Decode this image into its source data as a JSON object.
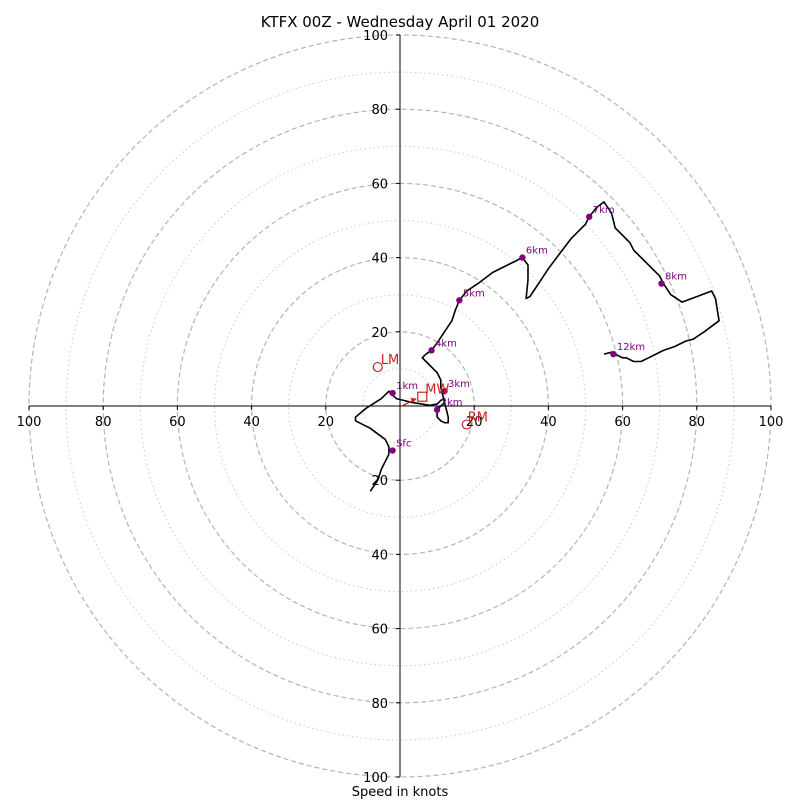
{
  "title": "KTFX 00Z - Wednesday April 01 2020",
  "footer_label": "Speed in knots",
  "chart_data": {
    "type": "line",
    "subtype": "hodograph",
    "units": "knots",
    "axis_range": [
      -100,
      100
    ],
    "ring_major": [
      20,
      40,
      60,
      80,
      100
    ],
    "ring_minor": [
      10,
      30,
      50,
      70,
      90
    ],
    "tick_labels_x": [
      "100",
      "80",
      "60",
      "40",
      "20",
      "20",
      "40",
      "60",
      "80",
      "100"
    ],
    "tick_values_x": [
      -100,
      -80,
      -60,
      -40,
      -20,
      20,
      40,
      60,
      80,
      100
    ],
    "tick_labels_y": [
      "100",
      "80",
      "60",
      "40",
      "20",
      "20",
      "40",
      "60",
      "80",
      "100"
    ],
    "tick_values_y": [
      100,
      80,
      60,
      40,
      20,
      -20,
      -40,
      -60,
      -80,
      -100
    ],
    "trace_color": "#000000",
    "height_marker_color": "#800080",
    "storm_motion_color": "#cc2222",
    "trace": [
      [
        -8,
        -23
      ],
      [
        -6,
        -20
      ],
      [
        -5,
        -17
      ],
      [
        -3,
        -13
      ],
      [
        -3,
        -11
      ],
      [
        -4,
        -9
      ],
      [
        -8,
        -6
      ],
      [
        -12,
        -4
      ],
      [
        -12,
        -3
      ],
      [
        -9,
        -0.5
      ],
      [
        -5,
        2
      ],
      [
        -3,
        4
      ],
      [
        -2,
        3
      ],
      [
        -1,
        2
      ],
      [
        1,
        1.5
      ],
      [
        3,
        1
      ],
      [
        6,
        0.5
      ],
      [
        8,
        0.2
      ],
      [
        10,
        0.5
      ],
      [
        11,
        1.5
      ],
      [
        12,
        2
      ],
      [
        12,
        1
      ],
      [
        11,
        0
      ],
      [
        10,
        -1
      ],
      [
        10,
        -3
      ],
      [
        11,
        -4
      ],
      [
        12,
        -4.5
      ],
      [
        13,
        -4.5
      ],
      [
        13,
        -3
      ],
      [
        12.5,
        -1
      ],
      [
        12,
        1
      ],
      [
        11.5,
        3
      ],
      [
        11,
        5
      ],
      [
        11,
        7
      ],
      [
        10,
        9
      ],
      [
        9,
        10
      ],
      [
        7,
        12
      ],
      [
        6,
        13
      ],
      [
        7,
        14
      ],
      [
        8.5,
        15
      ],
      [
        10,
        17
      ],
      [
        12,
        20
      ],
      [
        14,
        23
      ],
      [
        15,
        26
      ],
      [
        16,
        28.5
      ],
      [
        18,
        31
      ],
      [
        21,
        33
      ],
      [
        25,
        36
      ],
      [
        29,
        38
      ],
      [
        33,
        40
      ],
      [
        34.5,
        38
      ],
      [
        34.5,
        34
      ],
      [
        34,
        29
      ],
      [
        35,
        29.5
      ],
      [
        36,
        31
      ],
      [
        38,
        34
      ],
      [
        40,
        37
      ],
      [
        43,
        41
      ],
      [
        46,
        45
      ],
      [
        48,
        47
      ],
      [
        50,
        49
      ],
      [
        51,
        51
      ],
      [
        53,
        53.5
      ],
      [
        55,
        55
      ],
      [
        57,
        52
      ],
      [
        58,
        48
      ],
      [
        60,
        46
      ],
      [
        62,
        44
      ],
      [
        63,
        42
      ],
      [
        66,
        39
      ],
      [
        68,
        37
      ],
      [
        70,
        35
      ],
      [
        71,
        33
      ],
      [
        73,
        30
      ],
      [
        76,
        28
      ],
      [
        80,
        29.5
      ],
      [
        84,
        31
      ],
      [
        85,
        29
      ],
      [
        86,
        23
      ],
      [
        82,
        20
      ],
      [
        79,
        18
      ],
      [
        77,
        17.5
      ],
      [
        74,
        16
      ],
      [
        71,
        15
      ],
      [
        69,
        14
      ],
      [
        67,
        13
      ],
      [
        65,
        12
      ],
      [
        63,
        12
      ],
      [
        61,
        13
      ],
      [
        60,
        13
      ],
      [
        58,
        14
      ],
      [
        57,
        14.5
      ],
      [
        55,
        14
      ]
    ],
    "height_markers": [
      {
        "label": "Sfc",
        "u": -2,
        "v": -12
      },
      {
        "label": "1km",
        "u": -2,
        "v": 3.5
      },
      {
        "label": "2km",
        "u": 10,
        "v": -1
      },
      {
        "label": "3km",
        "u": 12,
        "v": 4
      },
      {
        "label": "4km",
        "u": 8.5,
        "v": 15
      },
      {
        "label": "5km",
        "u": 16,
        "v": 28.5
      },
      {
        "label": "6km",
        "u": 33,
        "v": 40
      },
      {
        "label": "7km",
        "u": 51,
        "v": 51
      },
      {
        "label": "8km",
        "u": 70.5,
        "v": 33
      },
      {
        "label": "12km",
        "u": 57.5,
        "v": 14
      }
    ],
    "storm_motion": {
      "LM": {
        "label": "LM",
        "u": -6,
        "v": 10.5
      },
      "RM": {
        "label": "RM",
        "u": 18,
        "v": -5
      },
      "MW": {
        "label": "MW",
        "u": 6,
        "v": 2.5
      }
    }
  }
}
